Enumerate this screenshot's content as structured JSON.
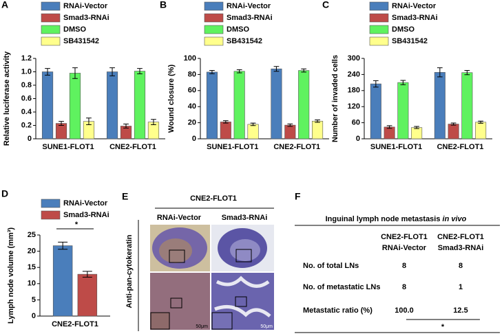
{
  "chart_data": [
    {
      "type": "bar",
      "panel": "A",
      "ylabel": "Relative luciferase activity",
      "categories": [
        "SUNE1-FLOT1",
        "CNE2-FLOT1"
      ],
      "ylim": [
        0,
        1.2
      ],
      "yticks": [
        0,
        0.2,
        0.4,
        0.6,
        0.8,
        {
          "value": 1,
          "label": "1.0"
        },
        1.2
      ],
      "series": [
        {
          "name": "RNAi-Vector",
          "color": "#4a7ebb",
          "values": [
            1.0,
            1.0
          ],
          "errors": [
            0.05,
            0.06
          ]
        },
        {
          "name": "Smad3-RNAi",
          "color": "#be4b48",
          "values": [
            0.23,
            0.19
          ],
          "errors": [
            0.03,
            0.03
          ]
        },
        {
          "name": "DMSO",
          "color": "#5ff25f",
          "values": [
            0.98,
            1.01
          ],
          "errors": [
            0.08,
            0.04
          ]
        },
        {
          "name": "SB431542",
          "color": "#ffff8c",
          "values": [
            0.26,
            0.25
          ],
          "errors": [
            0.05,
            0.04
          ]
        }
      ]
    },
    {
      "type": "bar",
      "panel": "B",
      "ylabel": "Wound closure (%)",
      "categories": [
        "SUNE1-FLOT1",
        "CNE2-FLOT1"
      ],
      "ylim": [
        0,
        100
      ],
      "yticks": [
        0,
        20,
        40,
        60,
        80,
        100
      ],
      "series": [
        {
          "name": "RNAi-Vector",
          "color": "#4a7ebb",
          "values": [
            83,
            87
          ],
          "errors": [
            2,
            3
          ]
        },
        {
          "name": "Smad3-RNAi",
          "color": "#be4b48",
          "values": [
            21,
            17
          ],
          "errors": [
            1.5,
            1.5
          ]
        },
        {
          "name": "DMSO",
          "color": "#5ff25f",
          "values": [
            84,
            85
          ],
          "errors": [
            2,
            2
          ]
        },
        {
          "name": "SB431542",
          "color": "#ffff8c",
          "values": [
            18,
            22
          ],
          "errors": [
            1.5,
            1.5
          ]
        }
      ]
    },
    {
      "type": "bar",
      "panel": "C",
      "ylabel": "Number of invaded cells",
      "categories": [
        "SUNE1-FLOT1",
        "CNE2-FLOT1"
      ],
      "ylim": [
        0,
        300
      ],
      "yticks": [
        0,
        60,
        120,
        180,
        240,
        300
      ],
      "series": [
        {
          "name": "RNAi-Vector",
          "color": "#4a7ebb",
          "values": [
            205,
            248
          ],
          "errors": [
            12,
            17
          ]
        },
        {
          "name": "Smad3-RNAi",
          "color": "#be4b48",
          "values": [
            44,
            55
          ],
          "errors": [
            5,
            4
          ]
        },
        {
          "name": "DMSO",
          "color": "#5ff25f",
          "values": [
            210,
            247
          ],
          "errors": [
            8,
            8
          ]
        },
        {
          "name": "SB431542",
          "color": "#ffff8c",
          "values": [
            42,
            62
          ],
          "errors": [
            4,
            4
          ]
        }
      ]
    },
    {
      "type": "bar",
      "panel": "D",
      "ylabel": "Lymph node volume (mm³)",
      "categories": [
        "CNE2-FLOT1"
      ],
      "annotation": "*",
      "ylim": [
        0,
        25
      ],
      "yticks": [
        0,
        5,
        10,
        15,
        20,
        25
      ],
      "series": [
        {
          "name": "RNAi-Vector",
          "color": "#4a7ebb",
          "values": [
            21.7
          ],
          "errors": [
            1.1
          ]
        },
        {
          "name": "Smad3-RNAi",
          "color": "#be4b48",
          "values": [
            12.9
          ],
          "errors": [
            0.9
          ]
        }
      ]
    }
  ],
  "image_panel": {
    "panel": "E",
    "title": "CNE2-FLOT1",
    "columns": [
      "RNAi-Vector",
      "Smad3-RNAi"
    ],
    "row_label": "Anti-pan-cytokeratin",
    "scale_bars": [
      "50μm",
      "50μm"
    ]
  },
  "table": {
    "panel": "F",
    "title": "Inguinal lymph node metastasis ",
    "title_italic": "in vivo",
    "header": [
      [
        "CNE2-FLOT1",
        "RNAi-Vector"
      ],
      [
        "CNE2-FLOT1",
        "Smad3-RNAi"
      ]
    ],
    "rows": [
      [
        "No. of total LNs",
        "8",
        "8"
      ],
      [
        "No. of metastatic LNs",
        "8",
        "1"
      ],
      [
        "Metastatic ratio (%)",
        "100.0",
        "12.5"
      ]
    ],
    "annotation": "*"
  }
}
